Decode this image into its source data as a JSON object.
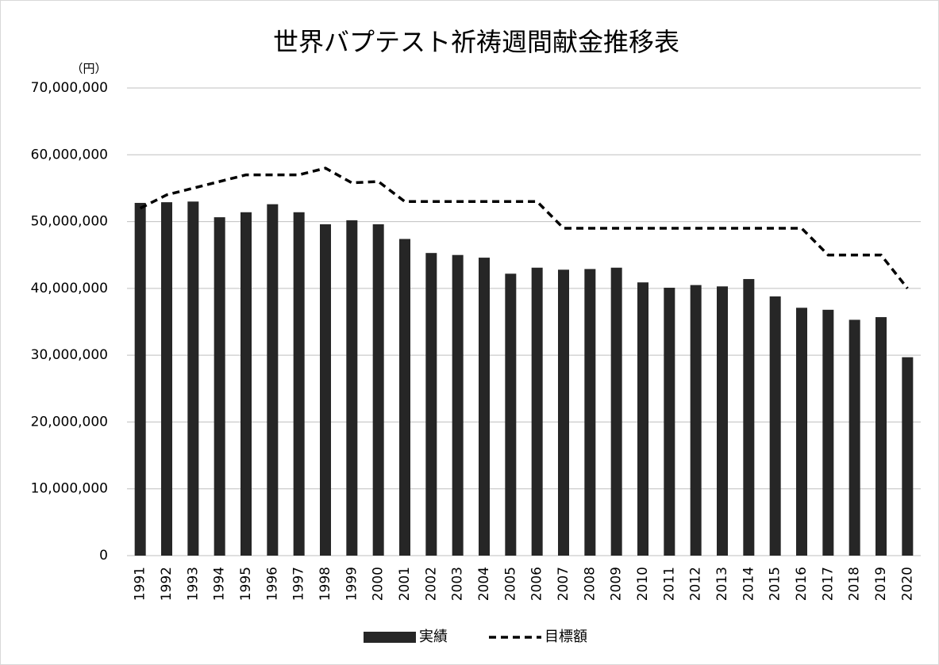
{
  "chart_data": {
    "type": "bar",
    "title": "世界バプテスト祈祷週間献金推移表",
    "y_axis_label": "（円）",
    "categories": [
      "1991",
      "1992",
      "1993",
      "1994",
      "1995",
      "1996",
      "1997",
      "1998",
      "1999",
      "2000",
      "2001",
      "2002",
      "2003",
      "2004",
      "2005",
      "2006",
      "2007",
      "2008",
      "2009",
      "2010",
      "2011",
      "2012",
      "2013",
      "2014",
      "2015",
      "2016",
      "2017",
      "2018",
      "2019",
      "2020"
    ],
    "series": [
      {
        "name": "実績",
        "type": "bar",
        "color": "#262626",
        "values": [
          52800000,
          52900000,
          53000000,
          50650000,
          51400000,
          52600000,
          51400000,
          49600000,
          50200000,
          49600000,
          47400000,
          45300000,
          45000000,
          44600000,
          42200000,
          43100000,
          42800000,
          42900000,
          43100000,
          40900000,
          40100000,
          40500000,
          40300000,
          41400000,
          38800000,
          37100000,
          36800000,
          35300000,
          35700000,
          29700000
        ]
      },
      {
        "name": "目標額",
        "type": "line",
        "color": "#000000",
        "line_style": "dashed",
        "values": [
          52000000,
          54000000,
          55000000,
          56000000,
          57000000,
          57000000,
          57000000,
          58000000,
          55800000,
          56000000,
          53000000,
          53000000,
          53000000,
          53000000,
          53000000,
          53000000,
          49000000,
          49000000,
          49000000,
          49000000,
          49000000,
          49000000,
          49000000,
          49000000,
          49000000,
          49000000,
          45000000,
          45000000,
          45000000,
          40000000
        ]
      }
    ],
    "ylim": [
      0,
      70000000
    ],
    "yticks": [
      0,
      {
        "value": 10000000,
        "label": "10,000,000"
      },
      {
        "value": 20000000,
        "label": "20,000,000"
      },
      {
        "value": 30000000,
        "label": "30,000,000"
      },
      {
        "value": 40000000,
        "label": "40,000,000"
      },
      {
        "value": 50000000,
        "label": "50,000,000"
      },
      {
        "value": 60000000,
        "label": "60,000,000"
      },
      {
        "value": 70000000,
        "label": "70,000,000"
      }
    ],
    "grid": true,
    "legend": "bottom"
  }
}
